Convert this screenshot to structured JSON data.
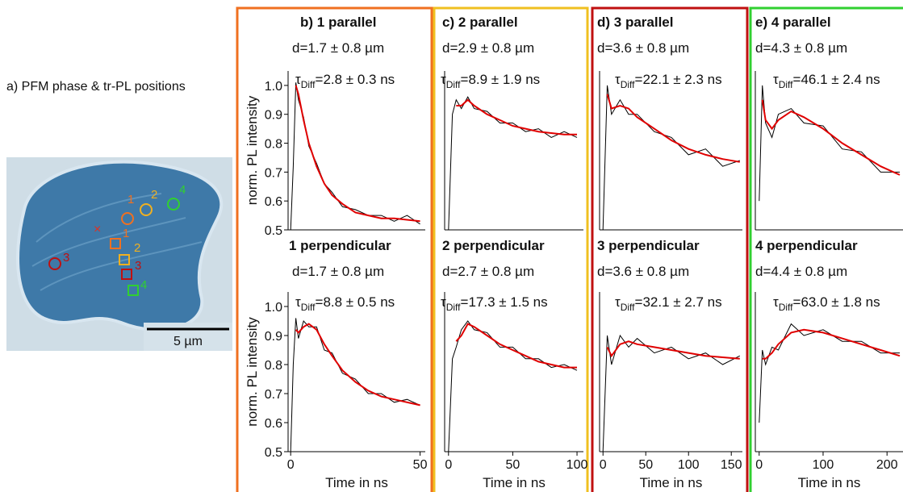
{
  "image_panel": {
    "title": "a) PFM phase & tr-PL positions",
    "markers": [
      "1",
      "2",
      "4",
      "3",
      "1",
      "2",
      "3",
      "4"
    ],
    "scale_label": "5 µm"
  },
  "chart_data": [
    {
      "type": "line",
      "title": "b) 1 parallel",
      "subtitle": "d=1.7 ± 0.8 µm",
      "annotation": {
        "symbol": "τ",
        "subscript": "Diff",
        "text": "=2.8 ± 0.3 ns"
      },
      "ylabel": "norm. PL intensity",
      "x": [
        0,
        1,
        2,
        3,
        5,
        7,
        10,
        13,
        16,
        20,
        25,
        30,
        35,
        40,
        45,
        50
      ],
      "series": [
        {
          "color": "#000000",
          "values": [
            0.5,
            0.72,
            1.01,
            0.95,
            0.89,
            0.79,
            0.73,
            0.66,
            0.63,
            0.58,
            0.57,
            0.55,
            0.55,
            0.53,
            0.55,
            0.52
          ]
        },
        {
          "color": "#e00000",
          "values": [
            null,
            null,
            1.0,
            0.97,
            0.88,
            0.8,
            0.72,
            0.66,
            0.62,
            0.59,
            0.56,
            0.55,
            0.54,
            0.54,
            0.535,
            0.53
          ]
        }
      ],
      "xlim": [
        -1,
        52
      ],
      "ylim": [
        0.5,
        1.05
      ],
      "yticks": [
        0.5,
        0.6,
        0.7,
        0.8,
        0.9,
        {
          "value": 1,
          "label": "1.0"
        }
      ]
    },
    {
      "type": "line",
      "title": "1 perpendicular",
      "subtitle": "d=1.7 ± 0.8 µm",
      "annotation": {
        "symbol": "τ",
        "subscript": "Diff",
        "text": "=8.8 ± 0.5 ns"
      },
      "ylabel": "norm. PL intensity",
      "xlabel": "Time in ns",
      "x": [
        0,
        1,
        2,
        3,
        5,
        7,
        10,
        13,
        16,
        20,
        25,
        30,
        35,
        40,
        45,
        50
      ],
      "series": [
        {
          "color": "#000000",
          "values": [
            0.5,
            0.8,
            0.96,
            0.89,
            0.95,
            0.93,
            0.93,
            0.85,
            0.84,
            0.77,
            0.75,
            0.7,
            0.7,
            0.67,
            0.68,
            0.66
          ]
        },
        {
          "color": "#e00000",
          "values": [
            null,
            null,
            0.92,
            0.91,
            0.93,
            0.94,
            0.92,
            0.87,
            0.83,
            0.78,
            0.74,
            0.71,
            0.69,
            0.68,
            0.67,
            0.66
          ]
        }
      ],
      "xlim": [
        -1,
        52
      ],
      "ylim": [
        0.5,
        1.05
      ],
      "xticks": [
        0,
        50
      ],
      "yticks": [
        0.5,
        0.6,
        0.7,
        0.8,
        0.9,
        {
          "value": 1,
          "label": "1.0"
        }
      ]
    },
    {
      "type": "line",
      "title": "c) 2 parallel",
      "subtitle": "d=2.9 ± 0.8 µm",
      "annotation": {
        "symbol": "τ",
        "subscript": "Diff",
        "text": "=8.9 ± 1.9 ns"
      },
      "x": [
        0,
        3,
        6,
        10,
        15,
        20,
        30,
        40,
        50,
        60,
        70,
        80,
        90,
        100
      ],
      "series": [
        {
          "color": "#000000",
          "values": [
            0.5,
            0.9,
            0.95,
            0.92,
            0.96,
            0.92,
            0.91,
            0.87,
            0.87,
            0.84,
            0.85,
            0.82,
            0.84,
            0.82
          ]
        },
        {
          "color": "#e00000",
          "values": [
            null,
            null,
            0.93,
            0.93,
            0.95,
            0.93,
            0.9,
            0.88,
            0.86,
            0.85,
            0.84,
            0.835,
            0.83,
            0.83
          ]
        }
      ],
      "xlim": [
        -3,
        105
      ],
      "ylim": [
        0.5,
        1.05
      ]
    },
    {
      "type": "line",
      "title": "2 perpendicular",
      "subtitle": "d=2.7 ± 0.8 µm",
      "annotation": {
        "symbol": "τ",
        "subscript": "Diff",
        "text": "=17.3 ± 1.5 ns"
      },
      "xlabel": "Time in ns",
      "x": [
        0,
        3,
        6,
        10,
        15,
        20,
        30,
        40,
        50,
        60,
        70,
        80,
        90,
        100
      ],
      "series": [
        {
          "color": "#000000",
          "values": [
            0.5,
            0.82,
            0.86,
            0.92,
            0.95,
            0.92,
            0.91,
            0.86,
            0.86,
            0.82,
            0.82,
            0.79,
            0.8,
            0.78
          ]
        },
        {
          "color": "#e00000",
          "values": [
            null,
            null,
            0.88,
            0.9,
            0.94,
            0.93,
            0.9,
            0.87,
            0.85,
            0.83,
            0.81,
            0.8,
            0.79,
            0.79
          ]
        }
      ],
      "xlim": [
        -3,
        105
      ],
      "ylim": [
        0.5,
        1.05
      ],
      "xticks": [
        0,
        50,
        100
      ]
    },
    {
      "type": "line",
      "title": "d) 3 parallel",
      "subtitle": "d=3.6 ± 0.8 µm",
      "annotation": {
        "symbol": "τ",
        "subscript": "Diff",
        "text": "=22.1 ± 2.3 ns"
      },
      "x": [
        0,
        5,
        10,
        20,
        30,
        40,
        60,
        80,
        100,
        120,
        140,
        160
      ],
      "series": [
        {
          "color": "#000000",
          "values": [
            0.5,
            1.0,
            0.9,
            0.95,
            0.9,
            0.9,
            0.84,
            0.82,
            0.76,
            0.78,
            0.72,
            0.74
          ]
        },
        {
          "color": "#e00000",
          "values": [
            null,
            0.97,
            0.92,
            0.93,
            0.92,
            0.89,
            0.85,
            0.81,
            0.78,
            0.76,
            0.745,
            0.735
          ]
        }
      ],
      "xlim": [
        -4,
        163
      ],
      "ylim": [
        0.5,
        1.05
      ]
    },
    {
      "type": "line",
      "title": "3 perpendicular",
      "subtitle": "d=3.6 ± 0.8 µm",
      "annotation": {
        "symbol": "τ",
        "subscript": "Diff",
        "text": "=32.1 ± 2.7 ns"
      },
      "xlabel": "Time in ns",
      "x": [
        0,
        5,
        10,
        20,
        30,
        40,
        60,
        80,
        100,
        120,
        140,
        160
      ],
      "series": [
        {
          "color": "#000000",
          "values": [
            0.5,
            0.9,
            0.8,
            0.9,
            0.86,
            0.89,
            0.84,
            0.86,
            0.82,
            0.84,
            0.8,
            0.83
          ]
        },
        {
          "color": "#e00000",
          "values": [
            null,
            0.86,
            0.83,
            0.87,
            0.88,
            0.87,
            0.86,
            0.85,
            0.84,
            0.83,
            0.825,
            0.82
          ]
        }
      ],
      "xlim": [
        -4,
        163
      ],
      "ylim": [
        0.5,
        1.05
      ],
      "xticks": [
        0,
        50,
        100,
        150
      ]
    },
    {
      "type": "line",
      "title": "e) 4 parallel",
      "subtitle": "d=4.3 ± 0.8 µm",
      "annotation": {
        "symbol": "τ",
        "subscript": "Diff",
        "text": "=46.1 ± 2.4 ns"
      },
      "x": [
        0,
        5,
        10,
        20,
        30,
        50,
        70,
        100,
        130,
        160,
        190,
        220
      ],
      "series": [
        {
          "color": "#000000",
          "values": [
            0.6,
            1.0,
            0.87,
            0.82,
            0.9,
            0.92,
            0.87,
            0.86,
            0.78,
            0.77,
            0.7,
            0.7
          ]
        },
        {
          "color": "#e00000",
          "values": [
            null,
            0.95,
            0.88,
            0.85,
            0.88,
            0.91,
            0.89,
            0.85,
            0.8,
            0.76,
            0.72,
            0.69
          ]
        }
      ],
      "xlim": [
        -6,
        225
      ],
      "ylim": [
        0.5,
        1.05
      ]
    },
    {
      "type": "line",
      "title": "4 perpendicular",
      "subtitle": "d=4.4 ± 0.8 µm",
      "annotation": {
        "symbol": "τ",
        "subscript": "Diff",
        "text": "=63.0 ± 1.8 ns"
      },
      "xlabel": "Time in ns",
      "x": [
        0,
        5,
        10,
        20,
        30,
        50,
        70,
        100,
        130,
        160,
        190,
        220
      ],
      "series": [
        {
          "color": "#000000",
          "values": [
            0.6,
            0.85,
            0.8,
            0.86,
            0.85,
            0.94,
            0.9,
            0.92,
            0.88,
            0.88,
            0.84,
            0.84
          ]
        },
        {
          "color": "#e00000",
          "values": [
            null,
            0.82,
            0.82,
            0.84,
            0.87,
            0.91,
            0.92,
            0.91,
            0.89,
            0.87,
            0.85,
            0.83
          ]
        }
      ],
      "xlim": [
        -6,
        225
      ],
      "ylim": [
        0.5,
        1.05
      ],
      "xticks": [
        0,
        100,
        200
      ]
    }
  ]
}
